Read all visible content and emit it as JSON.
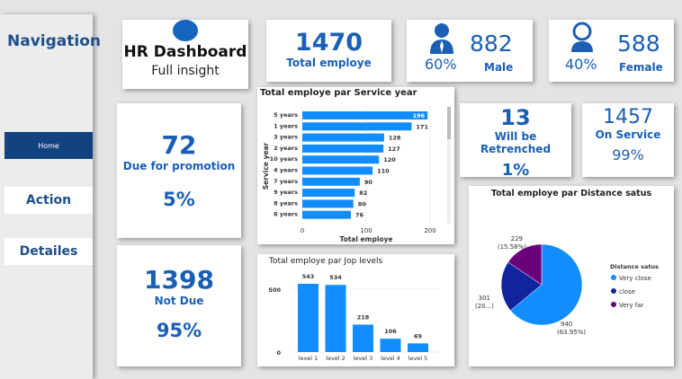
{
  "nav": {
    "title": "Navigation",
    "home": "Home",
    "action": "Action",
    "details": "Detailes"
  },
  "header": {
    "title": "HR Dashboard",
    "subtitle": "Full insight"
  },
  "kpi": {
    "total": {
      "value": "1470",
      "label": "Total employe"
    },
    "male": {
      "value": "882",
      "pct": "60%",
      "label": "Male"
    },
    "female": {
      "value": "588",
      "pct": "40%",
      "label": "Female"
    },
    "promotion": {
      "value": "72",
      "label": "Due for promotion",
      "pct": "5%"
    },
    "notdue": {
      "value": "1398",
      "label": "Not Due",
      "pct": "95%"
    },
    "retrenched": {
      "value": "13",
      "label": "Will be Retrenched",
      "pct": "1%"
    },
    "onservice": {
      "value": "1457",
      "label": "On Service",
      "pct": "99%"
    }
  },
  "colors": {
    "accent": "#118dff",
    "dark": "#12239e",
    "purple": "#6b007b",
    "text": "#1a5fb4"
  },
  "chart_data": [
    {
      "type": "bar",
      "orientation": "horizontal",
      "title": "Total employe par Service year",
      "ylabel": "Service year",
      "xlabel": "Total employe",
      "categories": [
        "5 years",
        "1 years",
        "3 years",
        "2 years",
        "10 years",
        "4 years",
        "7 years",
        "9 years",
        "8 years",
        "6 years"
      ],
      "values": [
        196,
        171,
        128,
        127,
        120,
        110,
        90,
        82,
        80,
        76
      ],
      "xlim": [
        0,
        200
      ],
      "xticks": [
        "0",
        "100",
        "200"
      ]
    },
    {
      "type": "bar",
      "title": "Total employe par Jop levels",
      "categories": [
        "level 1",
        "level 2",
        "level 3",
        "level 4",
        "level 5"
      ],
      "values": [
        543,
        534,
        218,
        106,
        69
      ],
      "yticks": [
        "0",
        "500"
      ],
      "ylim": [
        0,
        600
      ]
    },
    {
      "type": "pie",
      "title": "Total employe par Distance satus",
      "legend_title": "Distance satus",
      "legend": "right",
      "slices": [
        {
          "name": "Very close",
          "value": 940,
          "label": "940",
          "pct": "(63.95%)"
        },
        {
          "name": "close",
          "value": 301,
          "label": "301",
          "pct": "(20...)"
        },
        {
          "name": "Very far",
          "value": 229,
          "label": "229",
          "pct": "(15.58%)"
        }
      ]
    }
  ]
}
